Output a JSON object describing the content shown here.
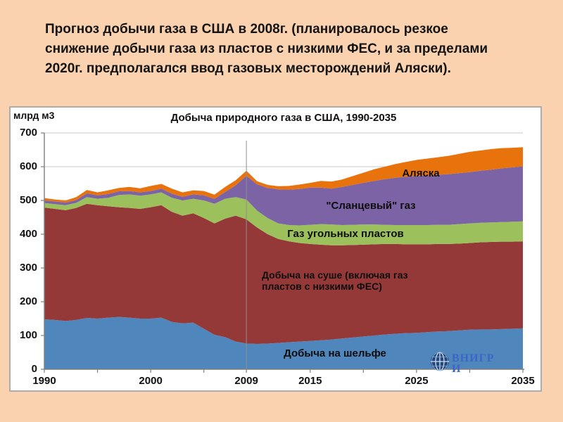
{
  "slide": {
    "title": "Прогноз добычи газа в США в 2008г. (планировалось резкое снижение добычи газа из пластов  с низкими ФЕС, и за пределами 2020г. предполагался ввод газовых месторождений Аляски).",
    "background_color": "#FAD2AF"
  },
  "chart": {
    "title": "Добыча природного газа в США, 1990-2035",
    "unit_label": "млрд м3",
    "y_tick_labels": [
      "0",
      "100",
      "200",
      "300",
      "400",
      "500",
      "600",
      "700"
    ],
    "x_tick_labels": [
      "1990",
      "2000",
      "2009",
      "2015",
      "2025",
      "2035"
    ],
    "x_tick_marks": [
      1990,
      1995,
      2000,
      2005,
      2009,
      2015,
      2020,
      2025,
      2030,
      2035
    ],
    "grid_color": "#C9C9C9",
    "axis_color": "#7F7F7F",
    "vline_color": "#8F8F8F"
  },
  "chart_data": {
    "type": "area",
    "stacked": true,
    "title": "Добыча природного газа в США, 1990-2035",
    "xlabel": "",
    "ylabel": "млрд м3",
    "ylim": [
      0,
      700
    ],
    "y_step": 100,
    "grid": true,
    "legend_position": "labels-on-areas",
    "annotations": {
      "vline_year": 2009
    },
    "x": [
      1990,
      1991,
      1992,
      1993,
      1994,
      1995,
      1996,
      1997,
      1998,
      1999,
      2000,
      2001,
      2002,
      2003,
      2004,
      2005,
      2006,
      2007,
      2008,
      2009,
      2010,
      2011,
      2012,
      2013,
      2014,
      2015,
      2016,
      2017,
      2018,
      2019,
      2020,
      2021,
      2022,
      2023,
      2024,
      2025,
      2026,
      2027,
      2028,
      2029,
      2030,
      2031,
      2032,
      2033,
      2034,
      2035
    ],
    "series": [
      {
        "name": "Добыча на шельфе",
        "color": "#4F86BC",
        "values": [
          148,
          146,
          143,
          146,
          152,
          150,
          153,
          155,
          153,
          150,
          150,
          153,
          140,
          136,
          138,
          120,
          102,
          95,
          82,
          76,
          75,
          76,
          78,
          80,
          82,
          84,
          86,
          88,
          91,
          94,
          97,
          100,
          103,
          105,
          107,
          108,
          110,
          112,
          113,
          115,
          117,
          118,
          118,
          119,
          120,
          121
        ]
      },
      {
        "name": "Добыча на суше (включая газ пластов с низкими ФЕС)",
        "color": "#943938",
        "values": [
          331,
          329,
          328,
          332,
          338,
          336,
          330,
          325,
          325,
          325,
          330,
          333,
          326,
          319,
          324,
          328,
          330,
          351,
          373,
          368,
          345,
          324,
          308,
          299,
          292,
          287,
          283,
          279,
          276,
          274,
          272,
          270,
          268,
          266,
          263,
          262,
          260,
          259,
          258,
          257,
          257,
          258,
          259,
          259,
          258,
          258
        ]
      },
      {
        "name": "Газ угольных пластов",
        "color": "#9CC15C",
        "values": [
          13,
          14,
          15,
          15,
          20,
          19,
          25,
          36,
          40,
          39,
          38,
          38,
          42,
          45,
          43,
          52,
          58,
          59,
          55,
          59,
          50,
          48,
          46,
          48,
          52,
          57,
          61,
          62,
          60,
          60,
          60,
          59,
          57,
          56,
          57,
          57,
          57,
          57,
          57,
          58,
          58,
          58,
          58,
          58,
          59,
          59
        ]
      },
      {
        "name": "\"Сланцевый\" газ",
        "color": "#7C63A5",
        "values": [
          8,
          8,
          8,
          8,
          11,
          10,
          11,
          11,
          10,
          10,
          10,
          11,
          12,
          11,
          13,
          15,
          15,
          20,
          35,
          70,
          78,
          89,
          101,
          105,
          108,
          110,
          108,
          106,
          113,
          118,
          123,
          129,
          135,
          140,
          143,
          145,
          147,
          148,
          150,
          151,
          152,
          154,
          156,
          159,
          161,
          163
        ]
      },
      {
        "name": "Аляска",
        "color": "#E8730D",
        "values": [
          7,
          6,
          6,
          9,
          10,
          9,
          11,
          10,
          12,
          12,
          15,
          14,
          15,
          13,
          12,
          13,
          12,
          15,
          15,
          15,
          9,
          9,
          9,
          11,
          13,
          14,
          20,
          21,
          22,
          26,
          30,
          34,
          37,
          41,
          44,
          48,
          50,
          52,
          54,
          57,
          60,
          60,
          61,
          60,
          58,
          57
        ]
      }
    ]
  },
  "logo": {
    "line1": "ВНИГР",
    "line2": "И",
    "color": "#3B67C4"
  }
}
